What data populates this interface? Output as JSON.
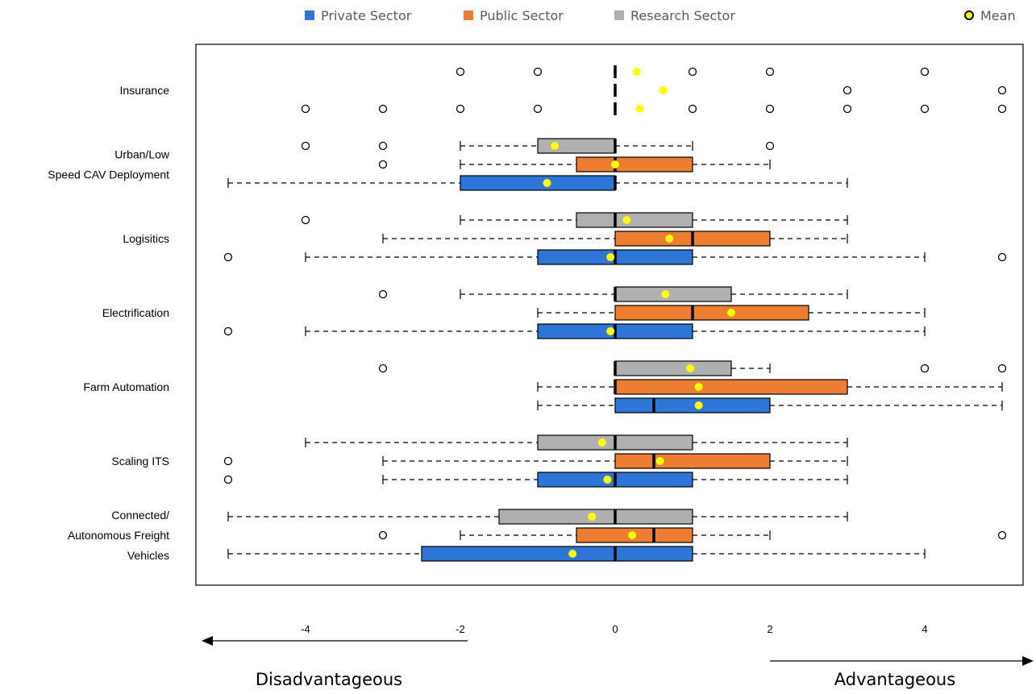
{
  "chart_data": {
    "type": "boxplot",
    "orientation": "horizontal",
    "xlim": [
      -5,
      5
    ],
    "x_ticks": [
      "-4",
      "-2",
      "0",
      "2",
      "4"
    ],
    "grid": false,
    "legend_position": "top",
    "direction_left": "Disadvantageous",
    "direction_right": "Advantageous",
    "legend": [
      {
        "key": "private",
        "label": "Private Sector",
        "color": "#2e75d8"
      },
      {
        "key": "public",
        "label": "Public Sector",
        "color": "#ed7d31"
      },
      {
        "key": "research",
        "label": "Research Sector",
        "color": "#b0b0b0"
      },
      {
        "key": "mean",
        "label": "Mean",
        "color": "#ffff00"
      }
    ],
    "categories": [
      {
        "label_lines": [
          "Insurance"
        ],
        "series": [
          {
            "sector": "research",
            "whisker_low": null,
            "q1": 0,
            "median": 0,
            "q3": 0,
            "whisker_high": null,
            "mean": 0.28,
            "outliers": [
              -2,
              -1,
              1,
              2,
              4
            ]
          },
          {
            "sector": "public",
            "whisker_low": null,
            "q1": 0,
            "median": 0,
            "q3": 0,
            "whisker_high": null,
            "mean": 0.62,
            "outliers": [
              3,
              5
            ]
          },
          {
            "sector": "private",
            "whisker_low": null,
            "q1": 0,
            "median": 0,
            "q3": 0,
            "whisker_high": null,
            "mean": 0.32,
            "outliers": [
              -4,
              -3,
              -2,
              -1,
              1,
              2,
              3,
              4,
              5
            ]
          }
        ]
      },
      {
        "label_lines": [
          "Urban/Low",
          "Speed CAV Deployment"
        ],
        "series": [
          {
            "sector": "research",
            "whisker_low": -2,
            "q1": -1,
            "median": 0,
            "q3": 0,
            "whisker_high": 1,
            "mean": -0.78,
            "outliers": [
              -4,
              -3,
              2
            ]
          },
          {
            "sector": "public",
            "whisker_low": -2,
            "q1": -0.5,
            "median": 0,
            "q3": 1,
            "whisker_high": 2,
            "mean": 0,
            "outliers": [
              -3
            ]
          },
          {
            "sector": "private",
            "whisker_low": -5,
            "q1": -2,
            "median": 0,
            "q3": 0,
            "whisker_high": 3,
            "mean": -0.88,
            "outliers": []
          }
        ]
      },
      {
        "label_lines": [
          "Logisitics"
        ],
        "series": [
          {
            "sector": "research",
            "whisker_low": -2,
            "q1": -0.5,
            "median": 0,
            "q3": 1,
            "whisker_high": 3,
            "mean": 0.15,
            "outliers": [
              -4
            ]
          },
          {
            "sector": "public",
            "whisker_low": -3,
            "q1": 0,
            "median": 1,
            "q3": 2,
            "whisker_high": 3,
            "mean": 0.7,
            "outliers": []
          },
          {
            "sector": "private",
            "whisker_low": -4,
            "q1": -1,
            "median": 0,
            "q3": 1,
            "whisker_high": 4,
            "mean": -0.06,
            "outliers": [
              -5,
              5
            ]
          }
        ]
      },
      {
        "label_lines": [
          "Electrification"
        ],
        "series": [
          {
            "sector": "research",
            "whisker_low": -2,
            "q1": 0,
            "median": 0,
            "q3": 1.5,
            "whisker_high": 3,
            "mean": 0.65,
            "outliers": [
              -3
            ]
          },
          {
            "sector": "public",
            "whisker_low": -1,
            "q1": 0,
            "median": 1,
            "q3": 2.5,
            "whisker_high": 4,
            "mean": 1.5,
            "outliers": []
          },
          {
            "sector": "private",
            "whisker_low": -4,
            "q1": -1,
            "median": 0,
            "q3": 1,
            "whisker_high": 4,
            "mean": -0.06,
            "outliers": [
              -5
            ]
          }
        ]
      },
      {
        "label_lines": [
          "Farm Automation"
        ],
        "series": [
          {
            "sector": "research",
            "whisker_low": 0,
            "q1": 0,
            "median": 0,
            "q3": 1.5,
            "whisker_high": 2,
            "mean": 0.97,
            "outliers": [
              -3,
              4,
              5
            ]
          },
          {
            "sector": "public",
            "whisker_low": -1,
            "q1": 0,
            "median": 0,
            "q3": 3,
            "whisker_high": 5,
            "mean": 1.08,
            "outliers": []
          },
          {
            "sector": "private",
            "whisker_low": -1,
            "q1": 0,
            "median": 0.5,
            "q3": 2,
            "whisker_high": 5,
            "mean": 1.08,
            "outliers": []
          }
        ]
      },
      {
        "label_lines": [
          "Scaling ITS"
        ],
        "series": [
          {
            "sector": "research",
            "whisker_low": -4,
            "q1": -1,
            "median": 0,
            "q3": 1,
            "whisker_high": 3,
            "mean": -0.17,
            "outliers": []
          },
          {
            "sector": "public",
            "whisker_low": -3,
            "q1": 0,
            "median": 0.5,
            "q3": 2,
            "whisker_high": 3,
            "mean": 0.58,
            "outliers": [
              -5
            ]
          },
          {
            "sector": "private",
            "whisker_low": -3,
            "q1": -1,
            "median": 0,
            "q3": 1,
            "whisker_high": 3,
            "mean": -0.1,
            "outliers": [
              -5
            ]
          }
        ]
      },
      {
        "label_lines": [
          "Connected/",
          "Autonomous Freight",
          "Vehicles"
        ],
        "series": [
          {
            "sector": "research",
            "whisker_low": -5,
            "q1": -1.5,
            "median": 0,
            "q3": 1,
            "whisker_high": 3,
            "mean": -0.3,
            "outliers": []
          },
          {
            "sector": "public",
            "whisker_low": -2,
            "q1": -0.5,
            "median": 0.5,
            "q3": 1,
            "whisker_high": 2,
            "mean": 0.22,
            "outliers": [
              -3,
              5
            ]
          },
          {
            "sector": "private",
            "whisker_low": -5,
            "q1": -2.5,
            "median": 0,
            "q3": 1,
            "whisker_high": 4,
            "mean": -0.55,
            "outliers": []
          }
        ]
      }
    ]
  }
}
